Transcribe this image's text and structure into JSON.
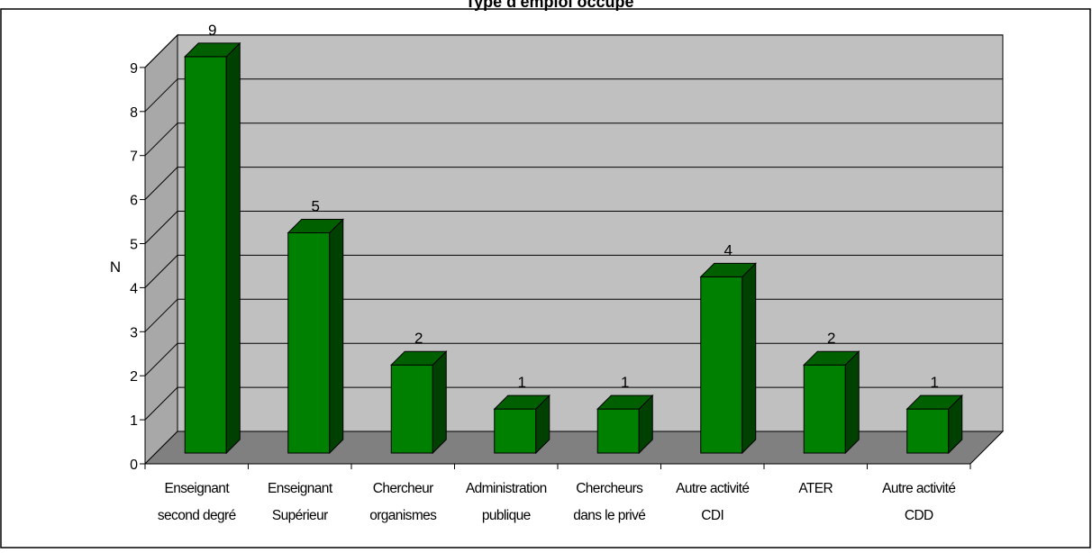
{
  "chart_data": {
    "type": "bar",
    "title": "Type d'emploi occupé",
    "xlabel": "",
    "ylabel": "N",
    "ylim": [
      0,
      9
    ],
    "yticks": [
      0,
      1,
      2,
      3,
      4,
      5,
      6,
      7,
      8,
      9
    ],
    "grid": true,
    "categories": [
      [
        "Enseignant",
        "second degré"
      ],
      [
        "Enseignant",
        "Supérieur"
      ],
      [
        "Chercheur",
        "organismes"
      ],
      [
        "Administration",
        "publique"
      ],
      [
        "Chercheurs",
        "dans le privé"
      ],
      [
        "Autre activité",
        "CDI"
      ],
      [
        "ATER"
      ],
      [
        "Autre activité",
        "CDD"
      ]
    ],
    "values": [
      9,
      5,
      2,
      1,
      1,
      4,
      2,
      1
    ],
    "data_labels": [
      "9",
      "5",
      "2",
      "1",
      "1",
      "4",
      "2",
      "1"
    ]
  },
  "colors": {
    "bar_front": "#008000",
    "bar_side": "#004000",
    "bar_top": "#006000",
    "back_wall": "#c0c0c0",
    "side_wall": "#a8a8a8",
    "floor": "#808080",
    "grid": "#000000"
  }
}
